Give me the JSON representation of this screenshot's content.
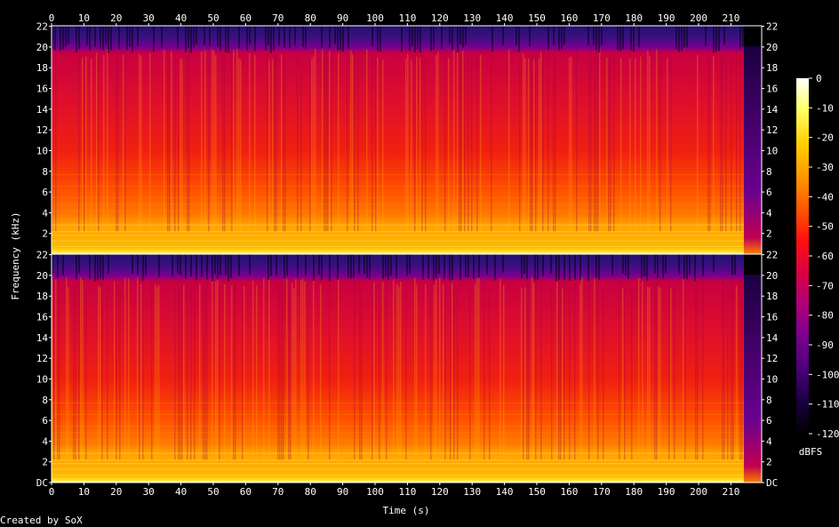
{
  "chart_data": {
    "type": "heatmap",
    "xlabel": "Time (s)",
    "ylabel": "Frequency (kHz)",
    "footer": "Created by SoX",
    "x_ticks": [
      "0",
      "10",
      "20",
      "30",
      "40",
      "50",
      "60",
      "70",
      "80",
      "90",
      "100",
      "110",
      "120",
      "130",
      "140",
      "150",
      "160",
      "170",
      "180",
      "190",
      "200",
      "210"
    ],
    "y_ticks": [
      "DC",
      "2",
      "4",
      "6",
      "8",
      "10",
      "12",
      "14",
      "16",
      "18",
      "20",
      "22"
    ],
    "xlim": [
      0,
      219.5
    ],
    "ylim_khz": [
      0,
      22.05
    ],
    "channels": 2,
    "colorbar": {
      "label": "dBFS",
      "ticks": [
        "0",
        "-10",
        "-20",
        "-30",
        "-40",
        "-50",
        "-60",
        "-70",
        "-80",
        "-90",
        "-100",
        "-110",
        "-120"
      ],
      "range": [
        -120,
        0
      ],
      "colors": [
        "#000000",
        "#1a0040",
        "#4a0078",
        "#7a0090",
        "#b0007a",
        "#dc0040",
        "#ff1010",
        "#ff5a00",
        "#ff9a00",
        "#ffd000",
        "#ffff60",
        "#ffffff"
      ]
    },
    "audio_end_s": 214
  }
}
